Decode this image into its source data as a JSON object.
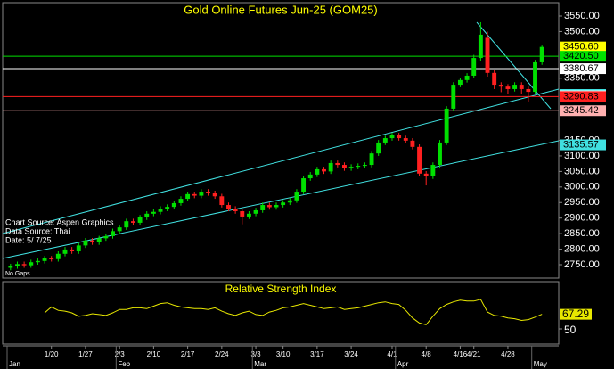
{
  "chart_data": {
    "type": "candlestick",
    "title": "Gold Online Futures Jun-25 (GOM25)",
    "annotations": [
      "Chart Source: Aspen Graphics",
      "Data Source: Thai",
      "Date:   5/ 7/25",
      "No Gaps"
    ],
    "categories": [
      null,
      null,
      null,
      null,
      null,
      null,
      "1/20",
      null,
      null,
      null,
      null,
      "1/27",
      null,
      null,
      null,
      null,
      "2/3",
      null,
      null,
      null,
      null,
      "2/10",
      null,
      null,
      null,
      null,
      "2/17",
      null,
      null,
      null,
      null,
      "2/24",
      null,
      null,
      null,
      null,
      "3/3",
      null,
      null,
      null,
      "3/10",
      null,
      null,
      null,
      null,
      "3/17",
      null,
      null,
      null,
      null,
      "3/24",
      null,
      null,
      null,
      null,
      null,
      "4/1",
      null,
      null,
      null,
      null,
      "4/8",
      null,
      null,
      null,
      null,
      "4/16",
      null,
      "4/21",
      null,
      null,
      null,
      null,
      "4/28",
      null,
      null,
      null,
      null,
      null
    ],
    "months": [
      "Jan",
      null,
      null,
      null,
      null,
      null,
      null,
      null,
      null,
      null,
      null,
      null,
      null,
      null,
      null,
      null,
      "Feb",
      null,
      null,
      null,
      null,
      null,
      null,
      null,
      null,
      null,
      null,
      null,
      null,
      null,
      null,
      null,
      null,
      null,
      null,
      null,
      "Mar",
      null,
      null,
      null,
      null,
      null,
      null,
      null,
      null,
      null,
      null,
      null,
      null,
      null,
      null,
      null,
      null,
      null,
      null,
      null,
      null,
      "Apr",
      null,
      null,
      null,
      null,
      null,
      null,
      null,
      null,
      null,
      null,
      null,
      null,
      null,
      null,
      null,
      null,
      null,
      null,
      null,
      "May",
      null
    ],
    "open": [
      2740,
      2745,
      2752,
      2748,
      2758,
      2762,
      2770,
      2768,
      2785,
      2799,
      2793,
      2812,
      2828,
      2822,
      2835,
      2842,
      2858,
      2870,
      2890,
      2885,
      2902,
      2914,
      2920,
      2930,
      2936,
      2948,
      2962,
      2977,
      2972,
      2985,
      2980,
      2970,
      2942,
      2930,
      2922,
      2905,
      2914,
      2925,
      2942,
      2935,
      2942,
      2950,
      2957,
      2985,
      3028,
      3040,
      3057,
      3050,
      3077,
      3071,
      3060,
      3065,
      3068,
      3071,
      3108,
      3143,
      3157,
      3166,
      3157,
      3149,
      3129,
      3043,
      3034,
      3071,
      3143,
      3252,
      3329,
      3344,
      3358,
      3415,
      3480,
      3367,
      3329,
      3323,
      3315,
      3329,
      3315,
      3306,
      3401
    ],
    "high": [
      2753,
      2760,
      2760,
      2766,
      2770,
      2778,
      2778,
      2793,
      2807,
      2807,
      2820,
      2836,
      2836,
      2843,
      2850,
      2866,
      2878,
      2898,
      2898,
      2910,
      2922,
      2928,
      2938,
      2944,
      2956,
      2970,
      2985,
      2985,
      2993,
      2993,
      2988,
      2978,
      2950,
      2938,
      2930,
      2922,
      2933,
      2950,
      2950,
      2950,
      2958,
      2965,
      2993,
      3036,
      3048,
      3065,
      3065,
      3085,
      3085,
      3079,
      3073,
      3076,
      3079,
      3116,
      3151,
      3165,
      3174,
      3174,
      3165,
      3157,
      3137,
      3051,
      3079,
      3151,
      3260,
      3337,
      3352,
      3366,
      3425,
      3530,
      3500,
      3377,
      3337,
      3331,
      3337,
      3337,
      3323,
      3409,
      3455
    ],
    "low": [
      2732,
      2737,
      2740,
      2740,
      2750,
      2754,
      2760,
      2760,
      2777,
      2785,
      2785,
      2804,
      2814,
      2814,
      2827,
      2834,
      2850,
      2862,
      2877,
      2877,
      2894,
      2906,
      2912,
      2922,
      2928,
      2940,
      2954,
      2964,
      2964,
      2972,
      2962,
      2934,
      2922,
      2914,
      2880,
      2897,
      2906,
      2917,
      2927,
      2927,
      2934,
      2942,
      2949,
      2977,
      3020,
      3032,
      3042,
      3042,
      3063,
      3052,
      3052,
      3057,
      3060,
      3063,
      3100,
      3135,
      3149,
      3149,
      3141,
      3121,
      3035,
      3005,
      3026,
      3063,
      3135,
      3244,
      3321,
      3336,
      3350,
      3405,
      3355,
      3315,
      3305,
      3300,
      3307,
      3300,
      3275,
      3298,
      3393
    ],
    "close": [
      2745,
      2752,
      2748,
      2758,
      2762,
      2770,
      2768,
      2785,
      2799,
      2793,
      2812,
      2828,
      2822,
      2835,
      2842,
      2858,
      2870,
      2890,
      2885,
      2902,
      2914,
      2920,
      2930,
      2936,
      2948,
      2962,
      2977,
      2972,
      2985,
      2980,
      2970,
      2942,
      2930,
      2922,
      2905,
      2914,
      2925,
      2942,
      2935,
      2942,
      2950,
      2957,
      2985,
      3028,
      3040,
      3057,
      3050,
      3077,
      3071,
      3060,
      3065,
      3068,
      3071,
      3108,
      3143,
      3157,
      3166,
      3157,
      3149,
      3129,
      3043,
      3034,
      3071,
      3143,
      3252,
      3329,
      3344,
      3358,
      3415,
      3490,
      3367,
      3329,
      3323,
      3315,
      3329,
      3315,
      3306,
      3401,
      3450.6
    ],
    "up_color": "#00e000",
    "down_color": "#ff2020",
    "ylim": [
      2707,
      3593
    ],
    "yticks": [
      {
        "value": 2750,
        "label": "2750.00"
      },
      {
        "value": 2800,
        "label": "2800.00"
      },
      {
        "value": 2850,
        "label": "2850.00"
      },
      {
        "value": 2900,
        "label": "2900.00"
      },
      {
        "value": 2950,
        "label": "2950.00"
      },
      {
        "value": 3000,
        "label": "3000.00"
      },
      {
        "value": 3050,
        "label": "3050.00"
      },
      {
        "value": 3100,
        "label": "3100.00"
      },
      {
        "value": 3150,
        "label": "3150.00"
      },
      {
        "value": 3350,
        "label": "3350.00"
      },
      {
        "value": 3500,
        "label": "3500.00"
      },
      {
        "value": 3550,
        "label": "3550.00"
      }
    ],
    "levels": [
      {
        "value": 3450.6,
        "label": "3450.60",
        "color": "#ffff00",
        "line": false
      },
      {
        "value": 3420.5,
        "label": "3420.50",
        "color": "#00e000",
        "line": true
      },
      {
        "value": 3380.67,
        "label": "3380.67",
        "color": "#ffffff",
        "line": true
      },
      {
        "value": 3297.67,
        "label": "3297.67",
        "color": "#40e0e0",
        "line": false
      },
      {
        "value": 3293.29,
        "label": "3293.29",
        "color": "#ffffff",
        "line": false
      },
      {
        "value": 3290.83,
        "label": "3290.83",
        "color": "#ff2020",
        "line": true
      },
      {
        "value": 3245.42,
        "label": "3245.42",
        "color": "#ffb0b0",
        "line": true
      },
      {
        "value": 3135.57,
        "label": "3135.57",
        "color": "#40e0e0",
        "line": false
      }
    ],
    "rsi": {
      "title": "Relative Strength Index",
      "color": "#e8e800",
      "values": [
        null,
        null,
        null,
        null,
        null,
        69,
        76,
        72,
        71,
        69,
        65,
        66,
        68,
        67,
        66,
        69,
        73,
        73,
        75,
        75,
        74,
        77,
        80,
        81,
        78,
        76,
        75,
        74,
        74,
        73,
        75,
        71,
        68,
        66,
        69,
        71,
        67,
        66,
        70,
        72,
        75,
        76,
        78,
        80,
        78,
        76,
        74,
        75,
        76,
        73,
        74,
        75,
        77,
        79,
        81,
        82,
        80,
        79,
        72,
        63,
        57,
        55,
        65,
        74,
        79,
        82,
        84,
        83,
        83,
        85,
        70,
        66,
        65,
        63,
        62,
        60,
        61,
        64,
        67.29
      ],
      "ylim": [
        32,
        105
      ],
      "yticks": [
        50
      ],
      "last": {
        "value": 67.29,
        "label": "67.29"
      }
    }
  }
}
